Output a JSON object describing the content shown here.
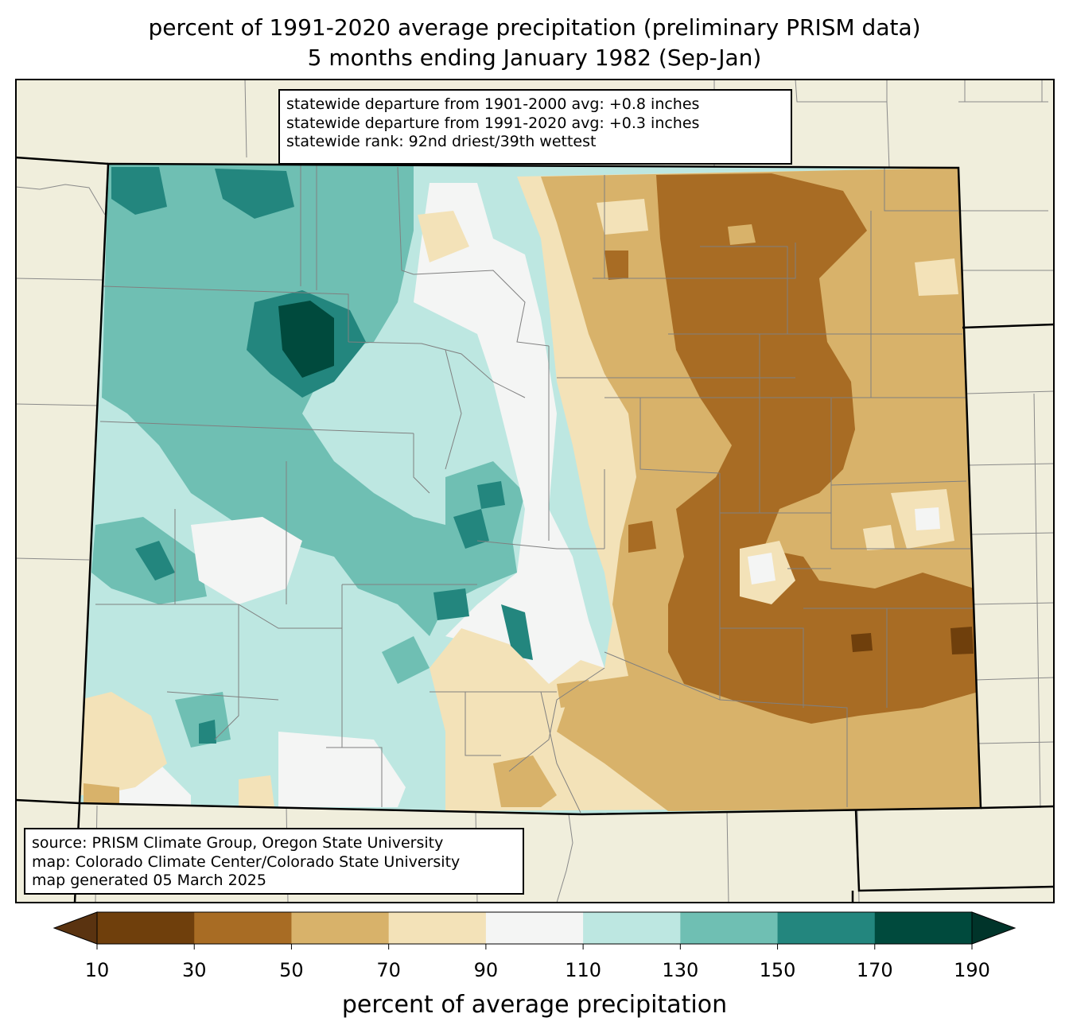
{
  "title": {
    "line1": "percent of 1991-2020 average precipitation (preliminary PRISM data)",
    "line2": "5 months ending January 1982 (Sep-Jan)"
  },
  "stats": {
    "line1": "statewide departure from 1901-2000 avg: +0.8 inches",
    "line2": "statewide departure from 1991-2020 avg: +0.3 inches",
    "line3": "statewide rank: 92nd driest/39th wettest"
  },
  "source": {
    "line1": "source: PRISM Climate Group, Oregon State University",
    "line2": "map: Colorado Climate Center/Colorado State University",
    "line3": "map generated 05 March 2025"
  },
  "colorbar": {
    "label": "percent of average precipitation",
    "ticks": [
      "10",
      "30",
      "50",
      "70",
      "90",
      "110",
      "130",
      "150",
      "170",
      "190"
    ],
    "colors": [
      "#6f3f0c",
      "#a86c24",
      "#d8b26a",
      "#f3e2b8",
      "#f4f5f4",
      "#bde7e1",
      "#6fbfb3",
      "#23867e",
      "#004a3d"
    ],
    "under_color": "#5a3310",
    "over_color": "#00342a"
  },
  "map_colors": {
    "background": "#f0eedc",
    "state_border": "#000000",
    "county_lines": "#808080"
  }
}
